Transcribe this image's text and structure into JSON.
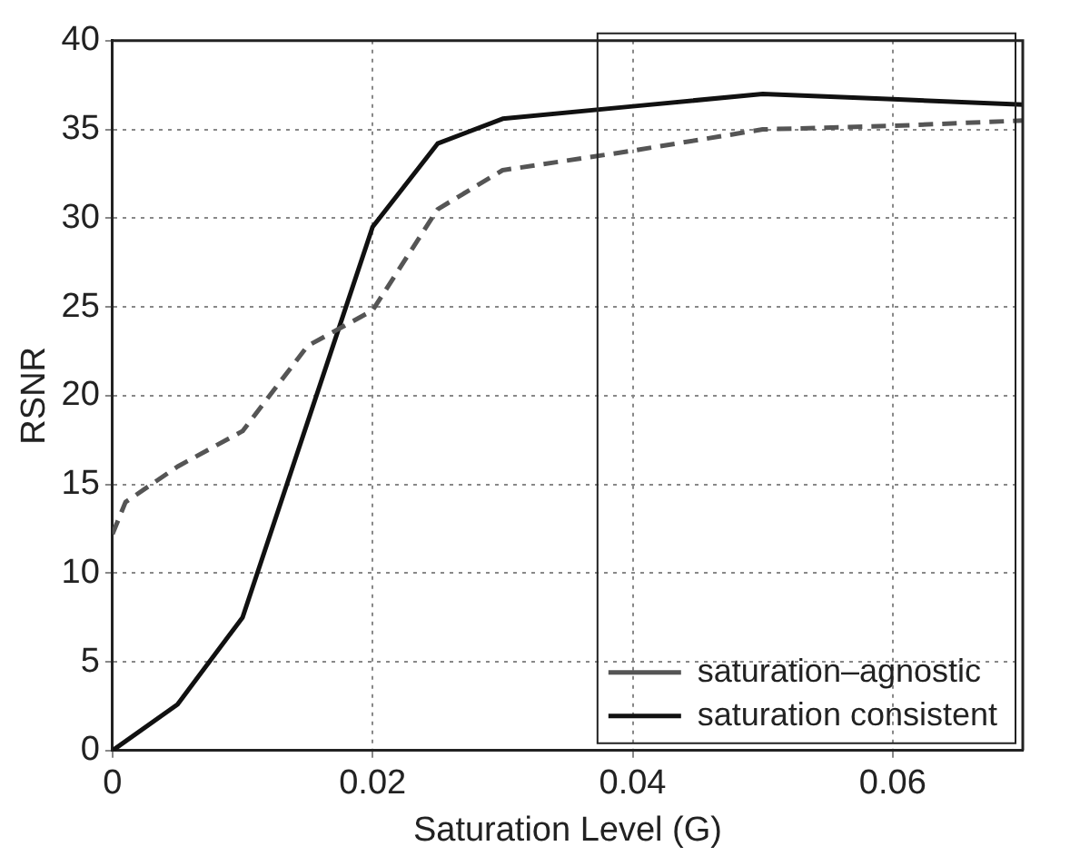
{
  "chart_data": {
    "type": "line",
    "xlabel": "Saturation Level (G)",
    "ylabel": "RSNR",
    "x": [
      0,
      0.005,
      0.01,
      0.015,
      0.02,
      0.025,
      0.03,
      0.04,
      0.05,
      0.06,
      0.07
    ],
    "series": [
      {
        "name": "saturation–agnostic",
        "color": "#555555",
        "line_style": "dashed",
        "x": [
          0,
          0.001,
          0.005,
          0.01,
          0.015,
          0.02,
          0.025,
          0.03,
          0.04,
          0.05,
          0.06,
          0.07
        ],
        "values": [
          12.2,
          14,
          16,
          18,
          22.8,
          24.8,
          30.5,
          32.7,
          33.8,
          35,
          35.2,
          35.5
        ]
      },
      {
        "name": "saturation consistent",
        "color": "#111111",
        "line_style": "solid",
        "values": [
          0,
          2.6,
          7.5,
          18.5,
          29.5,
          34.2,
          35.6,
          36.3,
          37,
          36.7,
          36.4
        ]
      }
    ],
    "xlim": [
      0,
      0.07
    ],
    "xticks": [
      0,
      0.02,
      0.04,
      0.06
    ],
    "ylim": [
      0,
      40
    ],
    "yticks": [
      0,
      5,
      10,
      15,
      20,
      25,
      30,
      35,
      40
    ],
    "grid": true,
    "legend": "bottom right",
    "marker": "none"
  }
}
